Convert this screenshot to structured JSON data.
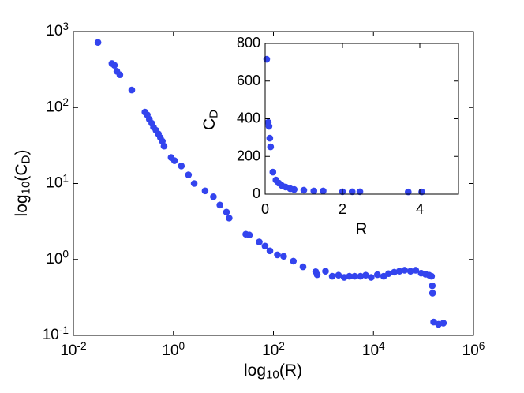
{
  "chart_data": [
    {
      "type": "scatter",
      "xscale": "log",
      "yscale": "log",
      "color": "#3344ee",
      "xlabel": "log_{10}(R)",
      "ylabel": "log_{10}(C_{D})",
      "xlim": [
        0.01,
        1000000
      ],
      "ylim": [
        0.1,
        1000
      ],
      "xticks": [
        {
          "value": 0.01,
          "label": "10^{-2}"
        },
        {
          "value": 1,
          "label": "10^{0}"
        },
        {
          "value": 100,
          "label": "10^{2}"
        },
        {
          "value": 10000,
          "label": "10^{4}"
        },
        {
          "value": 1000000,
          "label": "10^{6}"
        }
      ],
      "yticks": [
        {
          "value": 0.1,
          "label": "10^{-1}"
        },
        {
          "value": 1,
          "label": "10^{0}"
        },
        {
          "value": 10,
          "label": "10^{1}"
        },
        {
          "value": 100,
          "label": "10^{2}"
        },
        {
          "value": 1000,
          "label": "10^{3}"
        }
      ],
      "x": [
        0.031,
        0.059,
        0.066,
        0.074,
        0.085,
        0.147,
        0.27,
        0.3,
        0.33,
        0.37,
        0.4,
        0.45,
        0.5,
        0.55,
        0.6,
        0.65,
        0.9,
        1.05,
        1.44,
        2.0,
        2.6,
        4.3,
        6.3,
        8.5,
        11.5,
        13,
        28,
        33,
        52,
        68,
        85,
        120,
        160,
        250,
        390,
        700,
        750,
        1100,
        1500,
        2000,
        2600,
        3300,
        4200,
        5500,
        7000,
        9000,
        12000,
        16000,
        20000,
        26000,
        33000,
        42000,
        55000,
        70000,
        90000,
        110000,
        130000,
        145000,
        150000,
        152000,
        160000,
        200000,
        250000
      ],
      "values": [
        720,
        380,
        360,
        300,
        270,
        170,
        87,
        80,
        70,
        62,
        55,
        50,
        45,
        40,
        36,
        31,
        22,
        20,
        17,
        13,
        10,
        8,
        6.7,
        5.2,
        4.2,
        3.5,
        2.15,
        2.1,
        1.7,
        1.5,
        1.3,
        1.15,
        1.1,
        0.95,
        0.8,
        0.69,
        0.63,
        0.7,
        0.6,
        0.62,
        0.58,
        0.6,
        0.6,
        0.6,
        0.62,
        0.58,
        0.63,
        0.6,
        0.65,
        0.68,
        0.7,
        0.72,
        0.7,
        0.72,
        0.66,
        0.64,
        0.62,
        0.6,
        0.45,
        0.36,
        0.15,
        0.14,
        0.145
      ]
    },
    {
      "type": "scatter",
      "color": "#3344ee",
      "xlabel": "R",
      "ylabel": "C_{D}",
      "xlim": [
        0,
        5
      ],
      "ylim": [
        0,
        800
      ],
      "xticks": [
        0,
        2,
        4
      ],
      "yticks": [
        0,
        200,
        400,
        600,
        800
      ],
      "x": [
        0.04,
        0.08,
        0.1,
        0.12,
        0.14,
        0.2,
        0.28,
        0.35,
        0.43,
        0.53,
        0.65,
        0.75,
        1.0,
        1.26,
        1.5,
        2.0,
        2.25,
        2.45,
        3.7,
        4.05
      ],
      "values": [
        716,
        381,
        360,
        297,
        251,
        117,
        75,
        59,
        46,
        38,
        29,
        25,
        21,
        17,
        17,
        13,
        13,
        13,
        12,
        12
      ]
    }
  ]
}
